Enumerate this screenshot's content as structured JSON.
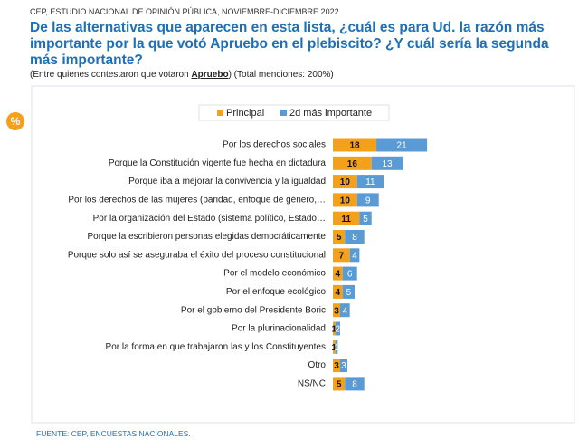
{
  "header": "CEP, ESTUDIO NACIONAL DE OPINIÓN PÚBLICA, NOVIEMBRE-DICIEMBRE 2022",
  "badge": "%",
  "footer": "FUENTE: CEP, ENCUESTAS NACIONALES.",
  "chart_data": {
    "type": "stacked-barh",
    "title": "De las alternativas que aparecen en esta lista, ¿cuál es para Ud. la razón más importante por la que votó Apruebo en el plebiscito? ¿Y cuál sería la segunda más importante?",
    "subtitle": [
      "(Entre quienes contestaron que votaron ",
      "Apruebo",
      ") (Total menciones: 200%)"
    ],
    "categories": [
      "Por los derechos sociales",
      "Porque la Constitución vigente fue hecha en dictadura",
      "Porque iba a mejorar la convivencia y la igualdad",
      "Por los derechos de las mujeres (paridad, enfoque de género,…",
      "Por la organización del Estado (sistema político, Estado…",
      "Porque la escribieron personas elegidas democráticamente",
      "Porque solo así se aseguraba el éxito del proceso constitucional",
      "Por el modelo económico",
      "Por el enfoque ecológico",
      "Por el gobierno del Presidente Boric",
      "Por la plurinacionalidad",
      "Por la forma en que trabajaron las y los Constituyentes",
      "Otro",
      "NS/NC"
    ],
    "series": [
      {
        "name": "Principal",
        "color": "#f5a01a",
        "values": [
          18,
          16,
          10,
          10,
          11,
          5,
          7,
          4,
          4,
          3,
          1,
          1,
          3,
          5
        ]
      },
      {
        "name": "2d más importante",
        "color": "#5b9bd5",
        "values": [
          21,
          13,
          11,
          9,
          5,
          8,
          4,
          6,
          5,
          4,
          2,
          1,
          3,
          8
        ]
      }
    ],
    "legend": "top"
  }
}
